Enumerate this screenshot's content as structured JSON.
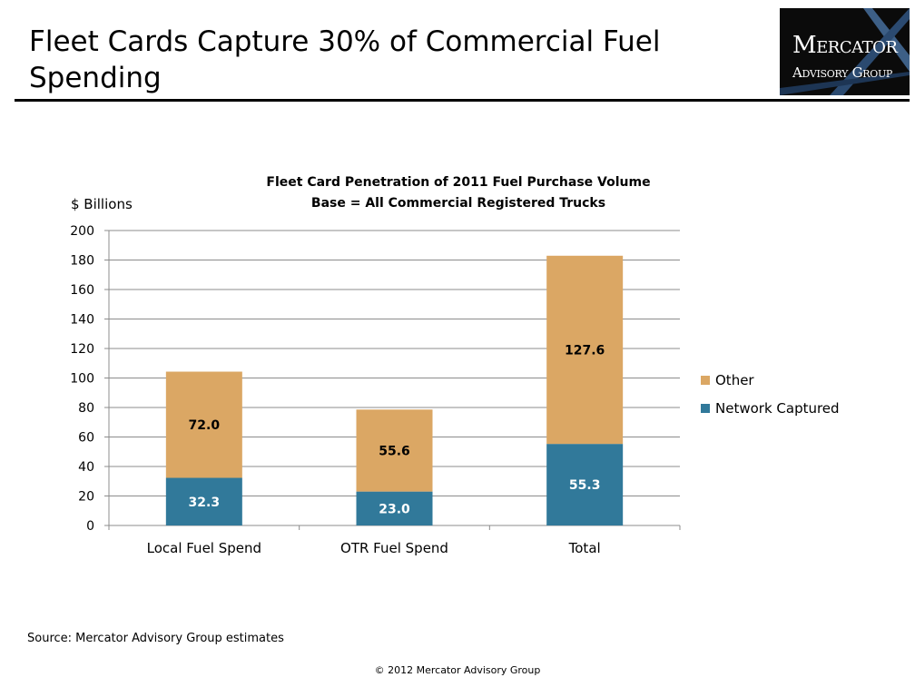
{
  "slide": {
    "title": "Fleet Cards Capture 30% of Commercial Fuel Spending",
    "source": "Source: Mercator Advisory Group estimates",
    "copyright": "© 2012 Mercator Advisory Group"
  },
  "logo": {
    "line1": "Mercator",
    "line2": "Advisory Group"
  },
  "chart_data": {
    "type": "bar",
    "stacked": true,
    "title": "Fleet Card Penetration of 2011 Fuel Purchase Volume",
    "subtitle": "Base = All Commercial Registered Trucks",
    "ylabel": "$ Billions",
    "xlabel": "",
    "ylim": [
      0,
      200
    ],
    "yticks": [
      0,
      20,
      40,
      60,
      80,
      100,
      120,
      140,
      160,
      180,
      200
    ],
    "grid": true,
    "legend_position": "right",
    "categories": [
      "Local Fuel Spend",
      "OTR Fuel Spend",
      "Total"
    ],
    "series": [
      {
        "name": "Network Captured",
        "values": [
          32.3,
          23.0,
          55.3
        ],
        "color": "#31799a",
        "label_color": "#ffffff"
      },
      {
        "name": "Other",
        "values": [
          72.0,
          55.6,
          127.6
        ],
        "color": "#dba764",
        "label_color": "#000000"
      }
    ],
    "legend_order": [
      "Other",
      "Network Captured"
    ]
  }
}
